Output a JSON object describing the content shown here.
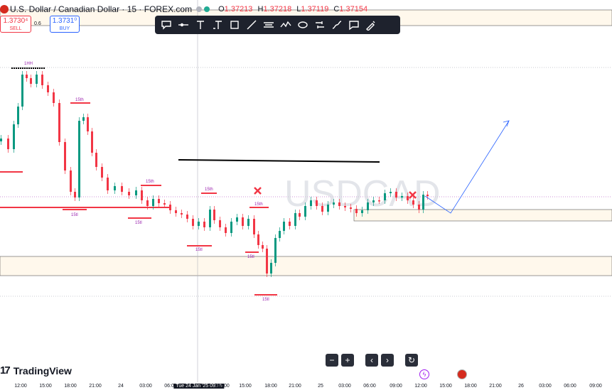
{
  "symbol": {
    "title": "U.S. Dollar / Canadian Dollar · 15 · FOREX.com",
    "ohlc": {
      "o_label": "O",
      "o": "1.37213",
      "h_label": "H",
      "h": "1.37218",
      "l_label": "L",
      "l": "1.37119",
      "c_label": "C",
      "c": "1.37154"
    }
  },
  "trade": {
    "sell_price": "1.3730⁴",
    "sell_label": "SELL",
    "spread": "0.6",
    "buy_price": "1.3731⁰",
    "buy_label": "BUY"
  },
  "watermark": "USDCAD",
  "toolbar_tools": [
    "callout-icon",
    "horizontal-ray-icon",
    "text-icon",
    "anchored-text-icon",
    "rectangle-icon",
    "trend-line-icon",
    "channel-icon",
    "path-icon",
    "ellipse-icon",
    "brush-icon",
    "curve-icon",
    "comment-icon",
    "pen-icon"
  ],
  "annotations": {
    "top_label": "1HH",
    "labels_15th": [
      "15th",
      "15th",
      "15th",
      "15th"
    ],
    "labels_15tl": [
      "15tl",
      "15tl",
      "15tl",
      "15tl",
      "15tl"
    ]
  },
  "navigation": {
    "zoom_out": "−",
    "zoom_in": "+",
    "scroll_left": "‹",
    "scroll_right": "›",
    "reset": "↻"
  },
  "branding": {
    "logo_text": "TradingView",
    "logo_mark": "17"
  },
  "time_axis": [
    {
      "t": "12:00"
    },
    {
      "t": "15:00"
    },
    {
      "t": "18:00"
    },
    {
      "t": "21:00"
    },
    {
      "t": "24"
    },
    {
      "t": "03:00"
    },
    {
      "t": "06:00"
    },
    {
      "t": "Tue 24 Jan '25   09:15"
    },
    {
      "t": "12:00"
    },
    {
      "t": "15:00"
    },
    {
      "t": "18:00"
    },
    {
      "t": "21:00"
    },
    {
      "t": "25"
    },
    {
      "t": "03:00"
    },
    {
      "t": "06:00"
    },
    {
      "t": "09:00"
    },
    {
      "t": "12:00"
    },
    {
      "t": "15:00"
    },
    {
      "t": "18:00"
    },
    {
      "t": "21:00"
    },
    {
      "t": "26"
    },
    {
      "t": "03:00"
    },
    {
      "t": "06:00"
    },
    {
      "t": "09:00"
    }
  ],
  "colors": {
    "bull": "#089981",
    "bear": "#f23645",
    "zone_fill": "#fff8ec",
    "zone_border": "#555555",
    "projection": "#2962ff",
    "label_purple": "#9c27b0"
  }
}
